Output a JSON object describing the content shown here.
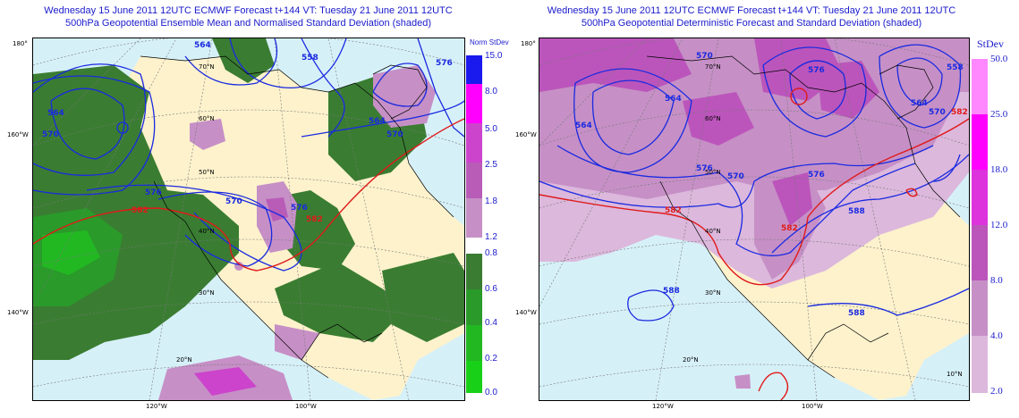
{
  "left_panel": {
    "title_line1": "Wednesday 15 June 2011 12UTC ECMWF Forecast t+144  VT: Tuesday 21 June 2011 12UTC",
    "title_line2": "500hPa Geopotential Ensemble Mean and Normalised Standard Deviation (shaded)",
    "colorbar_title": "Norm StDev",
    "colorbar_top": {
      "labels": [
        "15.0",
        "8.0",
        "5.0",
        "2.5",
        "1.8",
        "1.2"
      ],
      "colors": [
        "#1a1aee",
        "#ff00ff",
        "#cc44cc",
        "#b85cb8",
        "#c690c6"
      ]
    },
    "colorbar_bottom": {
      "labels": [
        "0.8",
        "0.6",
        "0.4",
        "0.2",
        "0.0"
      ],
      "colors": [
        "#3a7d32",
        "#2a9a2a",
        "#22b822",
        "#18d018"
      ]
    },
    "contour_labels": [
      "564",
      "570",
      "576",
      "582",
      "564",
      "570",
      "576",
      "582",
      "570",
      "576",
      "564",
      "558",
      "576",
      "570",
      "564"
    ],
    "lat_labels": [
      "70°N",
      "60°N",
      "50°N",
      "40°N",
      "30°N",
      "20°N"
    ],
    "lon_labels_left": [
      "180°",
      "160°W",
      "140°W"
    ],
    "lon_labels_bottom": [
      "120°W",
      "100°W"
    ]
  },
  "right_panel": {
    "title_line1": "Wednesday 15 June 2011 12UTC ECMWF Forecast t+144  VT: Tuesday 21 June 2011 12UTC",
    "title_line2": "500hPa Geopotential Deterministic Forecast and Standard Deviation (shaded)",
    "colorbar_title": "StDev",
    "colorbar": {
      "labels": [
        "50.0",
        "25.0",
        "18.0",
        "12.0",
        "8.0",
        "4.0",
        "2.0"
      ],
      "colors": [
        "#ff88ff",
        "#ff00ff",
        "#dd33dd",
        "#bb55bb",
        "#c690c6",
        "#dcb8dc"
      ]
    },
    "contour_labels": [
      "564",
      "570",
      "576",
      "582",
      "588",
      "564",
      "570",
      "576",
      "582",
      "588",
      "588",
      "576",
      "570",
      "564",
      "582",
      "558"
    ],
    "lat_labels": [
      "70°N",
      "60°N",
      "50°N",
      "40°N",
      "30°N",
      "20°N",
      "10°N"
    ],
    "lon_labels_left": [
      "180°",
      "160°W",
      "140°W"
    ],
    "lon_labels_bottom": [
      "120°W",
      "100°W"
    ]
  },
  "colors": {
    "ocean": "#d6f0f8",
    "land": "#fdf2cc",
    "contour_blue": "#1a2ae0",
    "contour_red": "#e01a1a",
    "title": "#1a1acc"
  }
}
